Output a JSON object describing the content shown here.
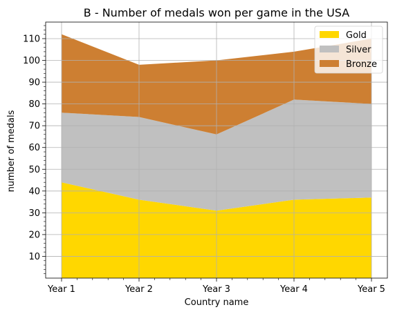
{
  "chart_data": {
    "type": "area",
    "stacked": true,
    "title": "B - Number of medals won per game in the USA",
    "xlabel": "Country name",
    "ylabel": "number of medals",
    "categories": [
      "Year 1",
      "Year 2",
      "Year 3",
      "Year 4",
      "Year 5"
    ],
    "series": [
      {
        "name": "Gold",
        "color": "#ffd700",
        "values": [
          44,
          36,
          31,
          36,
          37
        ]
      },
      {
        "name": "Silver",
        "color": "#c0c0c0",
        "values": [
          32,
          38,
          35,
          46,
          43
        ]
      },
      {
        "name": "Bronze",
        "color": "#cd7f32",
        "values": [
          36,
          24,
          34,
          22,
          30
        ]
      }
    ],
    "ylim": [
      0,
      117.6
    ],
    "yticks": [
      "10",
      "20",
      "30",
      "40",
      "50",
      "60",
      "70",
      "80",
      "90",
      "100",
      "110"
    ],
    "grid": true,
    "legend_position": "top-right"
  }
}
